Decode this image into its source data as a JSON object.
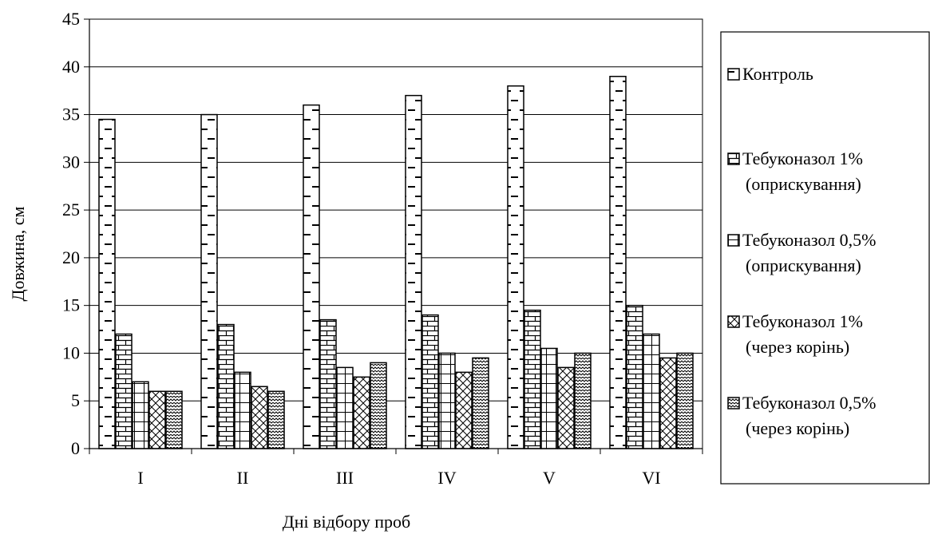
{
  "chart_data": {
    "type": "bar",
    "title": "",
    "xlabel": "Дні відбору проб",
    "ylabel": "Довжина, см",
    "ylim": [
      0,
      45
    ],
    "yticks": [
      0,
      5,
      10,
      15,
      20,
      25,
      30,
      35,
      40,
      45
    ],
    "grid": true,
    "legend_position": "right",
    "categories": [
      "I",
      "II",
      "III",
      "IV",
      "V",
      "VI"
    ],
    "series": [
      {
        "name": "Контроль",
        "legend_lines": [
          "Контроль"
        ],
        "pattern": "ladder",
        "values": [
          34.5,
          35,
          36,
          37,
          38,
          39
        ]
      },
      {
        "name": "Тебуконазол 1% (оприскування)",
        "legend_lines": [
          "Тебуконазол 1%",
          "(оприскування)"
        ],
        "pattern": "brick",
        "values": [
          12,
          13,
          13.5,
          14,
          14.5,
          15
        ]
      },
      {
        "name": "Тебуконазол 0,5% (оприскування)",
        "legend_lines": [
          "Тебуконазол 0,5%",
          "(оприскування)"
        ],
        "pattern": "grid",
        "values": [
          7,
          8,
          8.5,
          10,
          10.5,
          12
        ]
      },
      {
        "name": "Тебуконазол 1% (через корінь)",
        "legend_lines": [
          "Тебуконазол 1%",
          "(через корінь)"
        ],
        "pattern": "crosshatch",
        "values": [
          6,
          6.5,
          7.5,
          8,
          8.5,
          9.5
        ]
      },
      {
        "name": "Тебуконазол 0,5% (через корінь)",
        "legend_lines": [
          "Тебуконазол 0,5%",
          "(через корінь)"
        ],
        "pattern": "zigzag",
        "values": [
          6,
          6,
          9,
          9.5,
          10,
          10
        ]
      }
    ]
  }
}
